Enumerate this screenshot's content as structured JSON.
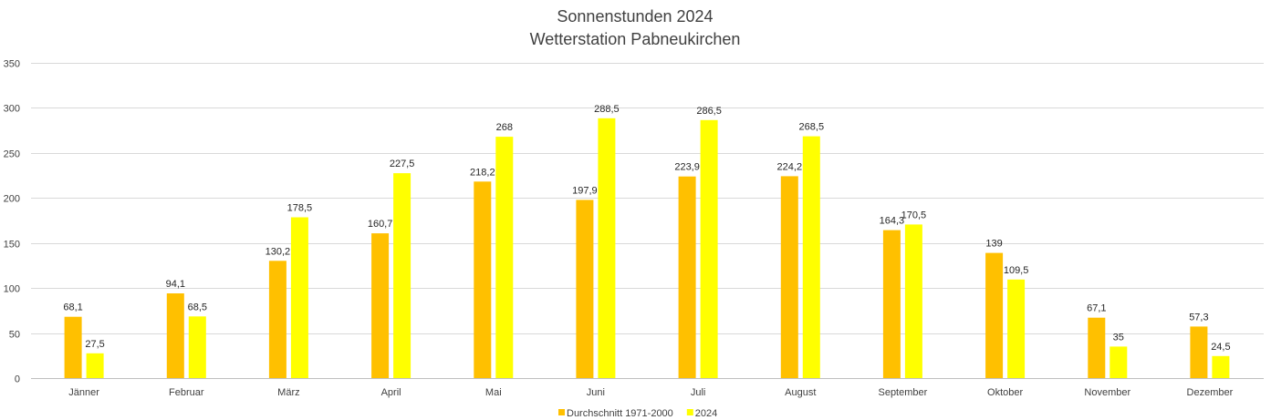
{
  "chart_data": {
    "type": "bar",
    "title": "Sonnenstunden 2024",
    "subtitle": "Wetterstation Pabneukirchen",
    "xlabel": "",
    "ylabel": "",
    "ylim": [
      0,
      350
    ],
    "yticks": [
      0,
      50,
      100,
      150,
      200,
      250,
      300,
      350
    ],
    "grid": true,
    "legend_position": "bottom",
    "categories": [
      "Jänner",
      "Februar",
      "März",
      "April",
      "Mai",
      "Juni",
      "Juli",
      "August",
      "September",
      "Oktober",
      "November",
      "Dezember"
    ],
    "series": [
      {
        "name": "Durchschnitt 1971-2000",
        "color": "#FFC000",
        "values": [
          68.1,
          94.1,
          130.2,
          160.7,
          218.2,
          197.9,
          223.9,
          224.2,
          164.3,
          139,
          67.1,
          57.3
        ],
        "labels": [
          "68,1",
          "94,1",
          "130,2",
          "160,7",
          "218,2",
          "197,9",
          "223,9",
          "224,2",
          "164,3",
          "139",
          "67,1",
          "57,3"
        ]
      },
      {
        "name": "2024",
        "color": "#FFFF00",
        "values": [
          27.5,
          68.5,
          178.5,
          227.5,
          268,
          288.5,
          286.5,
          268.5,
          170.5,
          109.5,
          35,
          24.5
        ],
        "labels": [
          "27,5",
          "68,5",
          "178,5",
          "227,5",
          "268",
          "288,5",
          "286,5",
          "268,5",
          "170,5",
          "109,5",
          "35",
          "24,5"
        ]
      }
    ]
  }
}
